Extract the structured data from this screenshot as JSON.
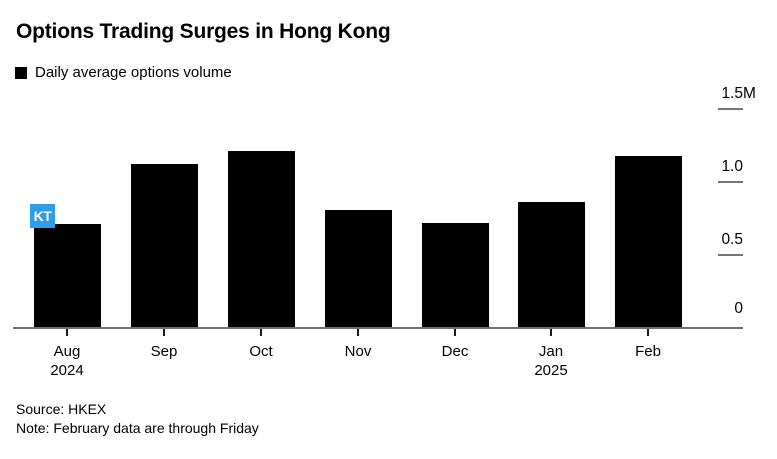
{
  "header": {
    "title": "Options Trading Surges in Hong Kong",
    "legend": {
      "label": "Daily average options volume",
      "swatch_color": "#000000"
    }
  },
  "chart_data": {
    "type": "bar",
    "title": "Options Trading Surges in Hong Kong",
    "series_name": "Daily average options volume",
    "categories": [
      "Aug",
      "Sep",
      "Oct",
      "Nov",
      "Dec",
      "Jan",
      "Feb"
    ],
    "category_sublabels": [
      "2024",
      "",
      "",
      "",
      "",
      "2025",
      ""
    ],
    "values": [
      0.71,
      1.12,
      1.21,
      0.81,
      0.72,
      0.86,
      1.18
    ],
    "unit": "M",
    "xlabel": "",
    "ylabel": "",
    "ylim": [
      0,
      1.5
    ],
    "yticks": [
      {
        "value": 0,
        "label": "0",
        "suffix": ""
      },
      {
        "value": 0.5,
        "label": "0.5",
        "suffix": ""
      },
      {
        "value": 1.0,
        "label": "1.0",
        "suffix": ""
      },
      {
        "value": 1.5,
        "label": "1.5",
        "suffix": "M"
      }
    ],
    "bar_color": "#000000",
    "grid": "short right-side tick dashes, no full gridlines",
    "legend_position": "top-left"
  },
  "annotations": {
    "cursor_badge_text": "KT",
    "cursor_badge_color": "#2f9ee8"
  },
  "footer": {
    "source": "Source: HKEX",
    "note": "Note: February data are through Friday"
  },
  "colors": {
    "background": "#ffffff",
    "axis_line": "#707070",
    "tick_dash": "#757575",
    "text": "#000000"
  }
}
